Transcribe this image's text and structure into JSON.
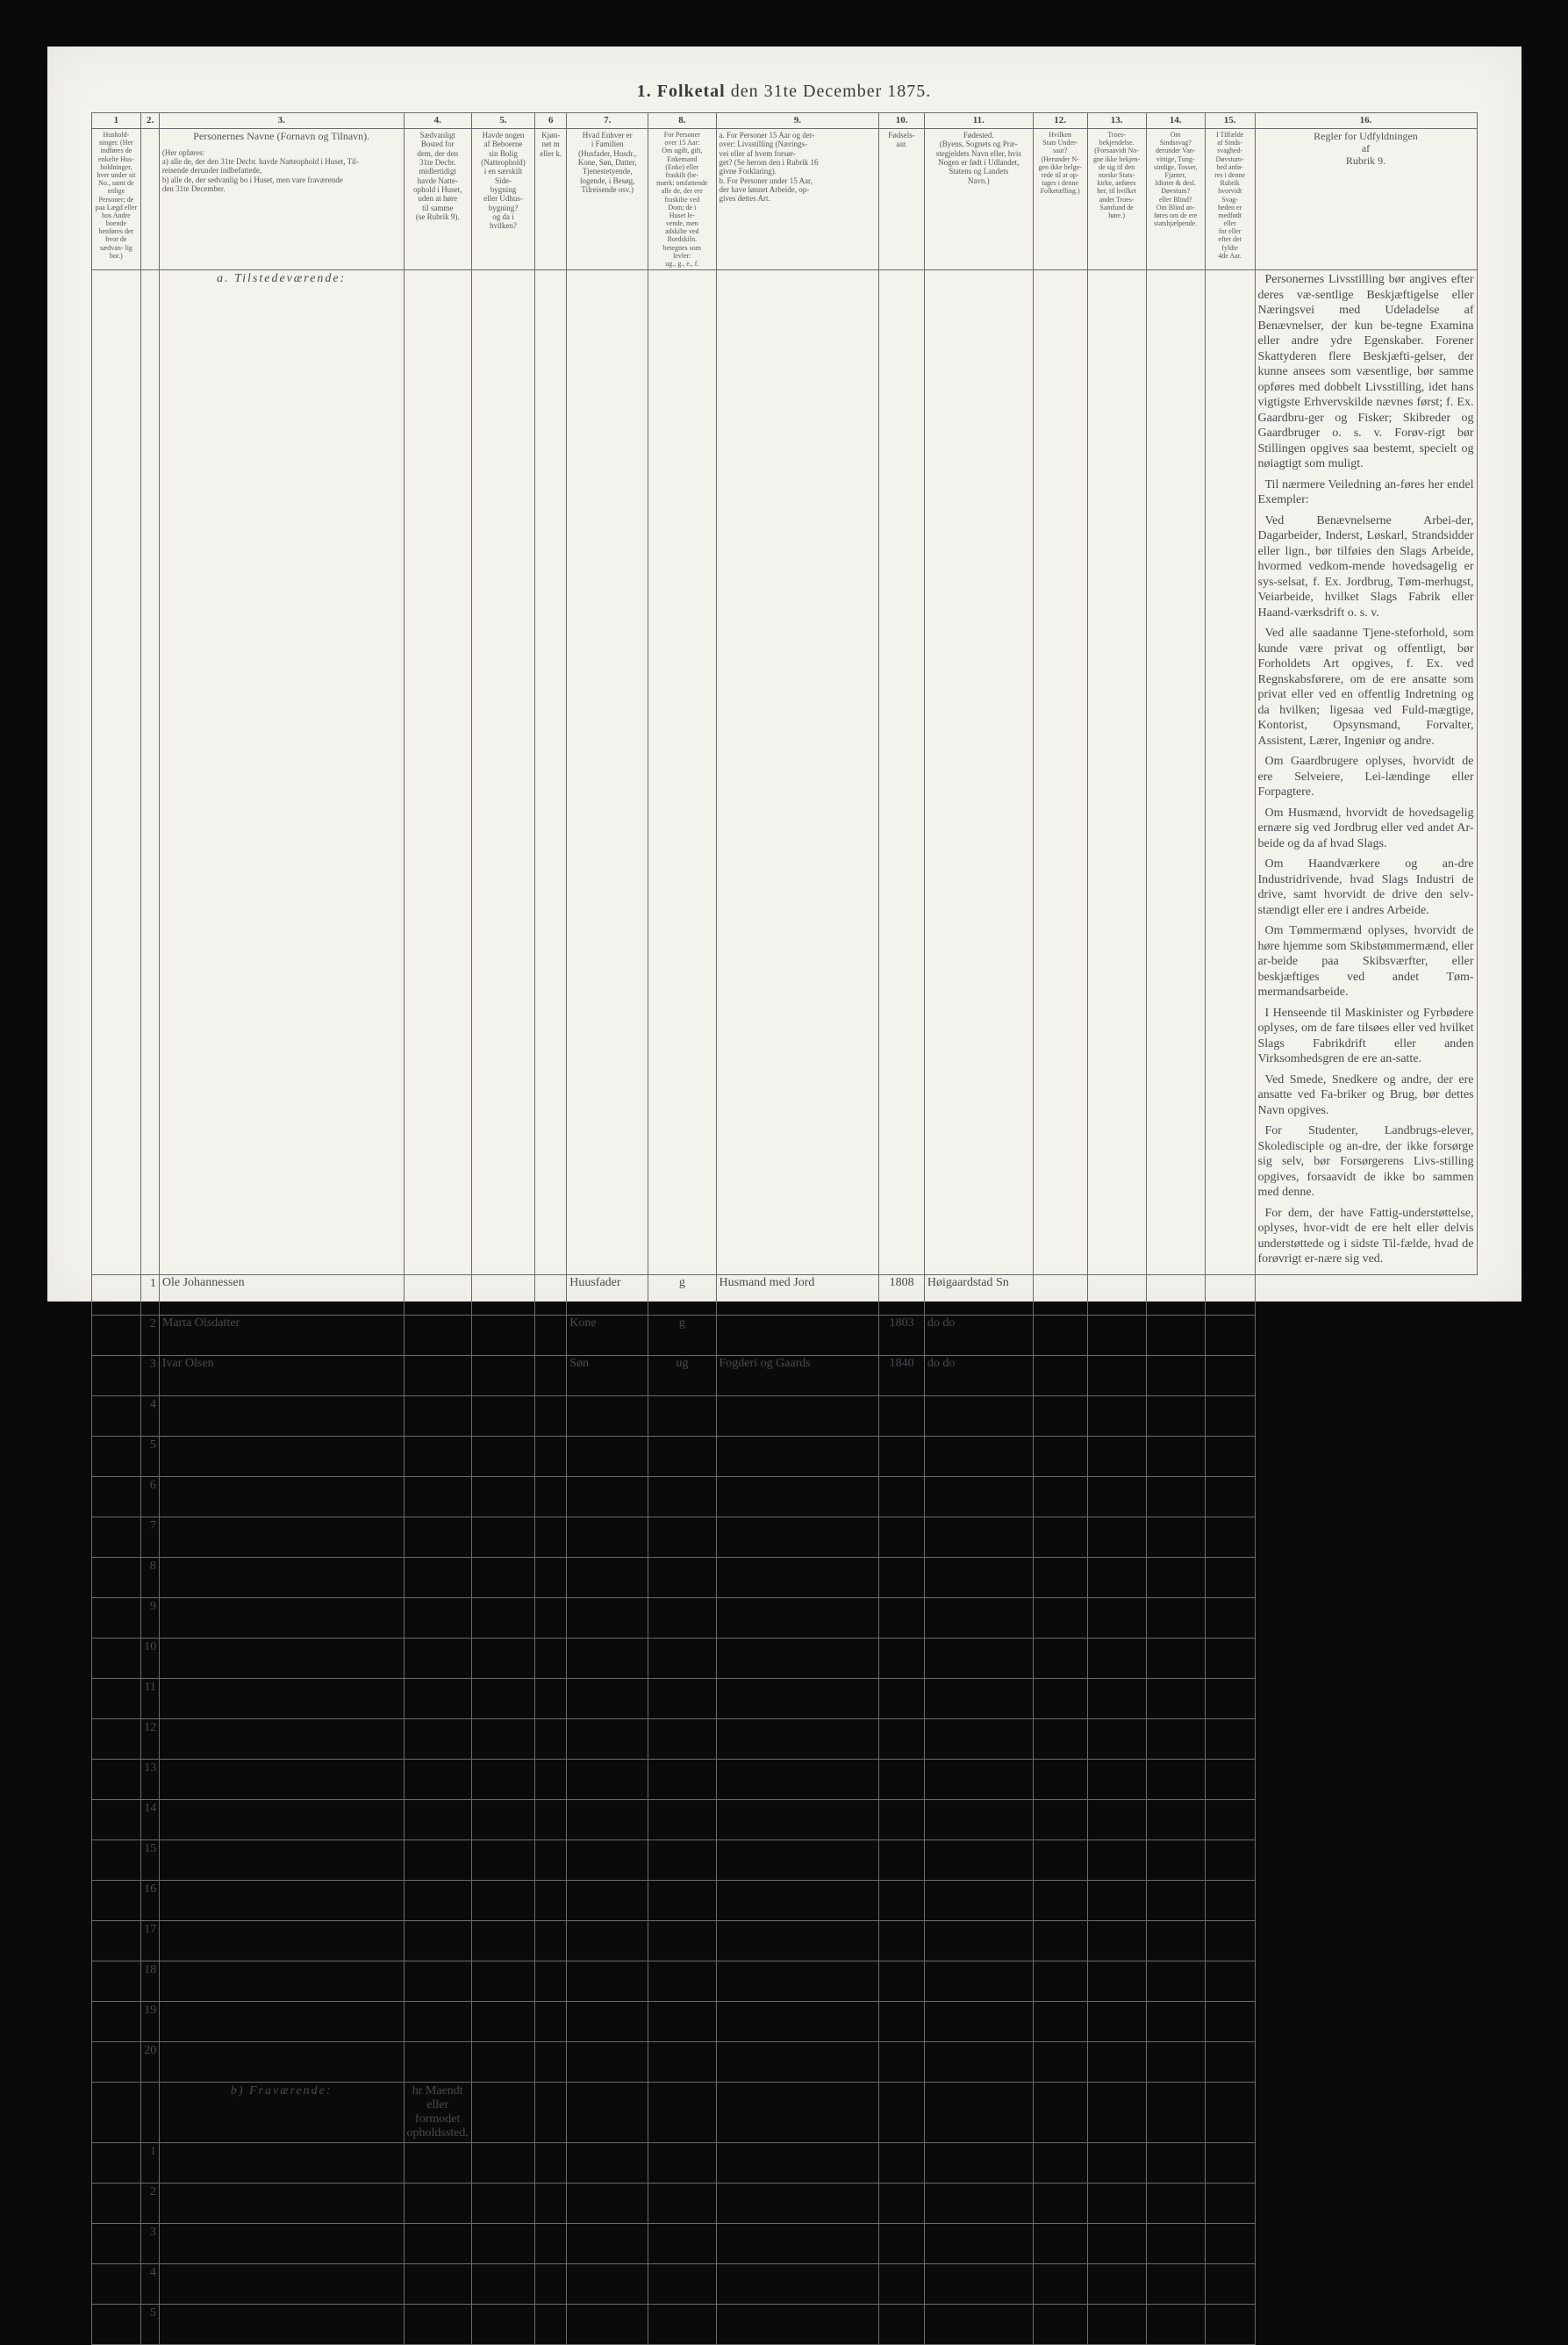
{
  "title_prefix": "1.  Folketal",
  "title_suffix": " den 31te December 1875.",
  "col_numbers": [
    "1",
    "2.",
    "3.",
    "4.",
    "5.",
    "6",
    "7.",
    "8.",
    "9.",
    "10.",
    "11.",
    "12.",
    "13.",
    "14.",
    "15.",
    "16."
  ],
  "headers": {
    "h1": "Hushold-\nninger.\n(Her indføres de\nenkelte Hus-\nholdninger,\nhver under sit\nNo., samt de\nenlige\nPersoner; de\npaa Lægd eller\nhos Andre boende\nhenføres der\nhvor de sædvan-\nlig bor.)",
    "h2": "",
    "h3_title": "Personernes Navne (Fornavn og Tilnavn).",
    "h3_body": "(Her opføres:\na) alle de, der den 31te Decbr. havde Natteophold i Huset, Til-\nreisende derunder indbefattede,\nb) alle de, der sedvanlig bo i Huset, men vare fraværende\nden 31te December.",
    "h4": "Sædvanligt\nBosted for\ndem, der den\n31te Decbr.\nmidlertidigt\nhavde Natte-\nophold i Huset,\nuden at høre\ntil samme\n(se Rubrik 9).",
    "h5": "Havde nogen\naf Beboerne\nsin Bolig\n(Natteophold)\ni en særskilt\nSide-\nbygning\neller Udhus-\nbygning?\nog da i\nhvilken?",
    "h6": "Kjøn-\nnet m\neller k.",
    "h7": "Hvad Enhver er\ni Familien\n(Husfader, Husdr.,\nKone, Søn, Datter,\nTjenestetyende,\nlogende, i Besøg,\nTilreisende osv.)",
    "h8": "For Personer\nover 15 Aar:\nOm ugift, gift,\nEnkemand\n(Enke) eller\nfraskilt (be-\nmærk: omfattende\nalle de, der ere\nfraskilte ved\nDom; de i\nHuset le-\nvende, men\nadskilte ved\nBordskiln.\nbetegnes som\nlevler:\nug., g., e., f.",
    "h9": "a. For Personer 15 Aar og der-\nover: Livsstilling (Nærings-\nvei eller af hvem forsør-\nget? (Se herom den i Rubrik 16\ngivne Forklaring).\nb. For Personer under 15 Aar,\nder have lønnet Arbeide, op-\ngives dettes Art.",
    "h10": "Fødsels-\naar.",
    "h11": "Fødested.\n(Byens, Sognets og Præ-\nstegjeldets Navn eller, hvis\nNogen er født i Udlandet,\nStatens og Landets\nNavn.)",
    "h12": "Hvilken\nStats Under-\nsaat?\n(Herunder N-\ngen ikke belge-\nrede til at op-\ntages i denne\nFolketælling.)",
    "h13": "Troes-\nbekjendelse.\n(Forsaavidt No-\ngne ikke bekjen-\nde sig til den\nnorske Stats-\nkirke, anføres\nher, til hvilket\nandet Troes-\nSamfund de\nhøre.)",
    "h14": "Om\nSindssvag?\nderunder Van-\nvittige, Tung-\nsindige, Tosser,\nFjanter,\nIdioter & desl.\nDøvstum?\neller Blind?\nOm Blind an-\nføres om de ere\nstatshjælpende.",
    "h15": "I Tilfælde\naf Sinds-\nsvaghed-\nDøvstum-\nhed anfø-\nres i denne\nRubrik\nhvorvidt\nSvag-\nheden er\nmedfødt\neller\nfor eller\nefter det\nfyldte\n4de Aar.",
    "h16_title": "Regler for Udfyldningen\naf\nRubrik 9."
  },
  "section_a": "a. Tilstedeværende:",
  "section_b": "b) Fraværende:",
  "section_b_note": "hr Maendt eller\nformodet\nopholdssted.",
  "rows_a_numbers": [
    "1",
    "2",
    "3",
    "4",
    "5",
    "6",
    "7",
    "8",
    "9",
    "10",
    "11",
    "12",
    "13",
    "14",
    "15",
    "16",
    "17",
    "18",
    "19",
    "20"
  ],
  "rows_b_numbers": [
    "1",
    "2",
    "3",
    "4",
    "5"
  ],
  "entries": [
    {
      "name": "Ole Johannessen",
      "c6": "",
      "c7": "Huusfader",
      "c8": "g",
      "c9": "Husmand med Jord",
      "c10": "1808",
      "c11": "Høigaardstad Sn"
    },
    {
      "name": "Marta Olsdatter",
      "c6": "",
      "c7": "Kone",
      "c8": "g",
      "c9": "",
      "c10": "1803",
      "c11": "do   do"
    },
    {
      "name": "Ivar Olsen",
      "c6": "",
      "c7": "Søn",
      "c8": "ug",
      "c9": "Fogderi og Gaards",
      "c10": "1840",
      "c11": "do   do"
    }
  ],
  "instructions": [
    "Personernes Livsstilling bør angives efter deres væ-sentlige Beskjæftigelse eller Næringsvei med Udeladelse af Benævnelser, der kun be-tegne Examina eller andre ydre Egenskaber. Forener Skattyderen flere Beskjæfti-gelser, der kunne ansees som væsentlige, bør samme opføres med dobbelt Livsstilling, idet hans vigtigste Erhvervskilde nævnes først; f. Ex. Gaardbru-ger og Fisker; Skibreder og Gaardbruger o. s. v. Forøv-rigt bør Stillingen opgives saa bestemt, specielt og nøiagtigt som muligt.",
    "Til nærmere Veiledning an-føres her endel Exempler:",
    "Ved Benævnelserne Arbei-der, Dagarbeider, Inderst, Løskarl, Strandsidder eller lign., bør tilføies den Slags Arbeide, hvormed vedkom-mende hovedsagelig er sys-selsat, f. Ex. Jordbrug, Tøm-merhugst, Veiarbeide, hvilket Slags Fabrik eller Haand-værksdrift o. s. v.",
    "Ved alle saadanne Tjene-steforhold, som kunde være privat og offentligt, bør Forholdets Art opgives, f. Ex. ved Regnskabsførere, om de ere ansatte som privat eller ved en offentlig Indretning og da hvilken; ligesaa ved Fuld-mægtige, Kontorist, Opsynsmand, Forvalter, Assistent, Lærer, Ingeniør og andre.",
    "Om Gaardbrugere oplyses, hvorvidt de ere Selveiere, Lei-lændinge eller Forpagtere.",
    "Om Husmænd, hvorvidt de hovedsagelig ernære sig ved Jordbrug eller ved andet Ar-beide og da af hvad Slags.",
    "Om Haandværkere og an-dre Industridrivende, hvad Slags Industri de drive, samt hvorvidt de drive den selv-stændigt eller ere i andres Arbeide.",
    "Om Tømmermænd oplyses, hvorvidt de høre hjemme som Skibstømmermænd, eller ar-beide paa Skibsværfter, eller beskjæftiges ved andet Tøm-mermandsarbeide.",
    "I Henseende til Maskinister og Fyrbødere oplyses, om de fare tilsøes eller ved hvilket Slags Fabrikdrift eller anden Virksomhedsgren de ere an-satte.",
    "Ved Smede, Snedkere og andre, der ere ansatte ved Fa-briker og Brug, bør dettes Navn opgives.",
    "For Studenter, Landbrugs-elever, Skoledisciple og an-dre, der ikke forsørge sig selv, bør Forsørgerens Livs-stilling opgives, forsaavidt de ikke bo sammen med denne.",
    "For dem, der have Fattig-understøttelse, oplyses, hvor-vidt de ere helt eller delvis understøttede og i sidste Til-fælde, hvad de forøvrigt er-nære sig ved."
  ]
}
